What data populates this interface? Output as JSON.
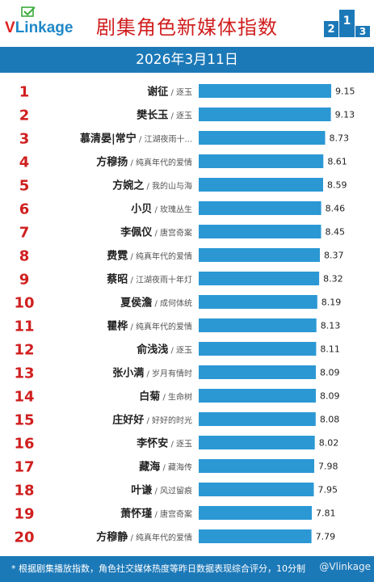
{
  "header": {
    "logo_text_accent": "V",
    "logo_text_rest": "Linkage",
    "title": "剧集角色新媒体指数",
    "podium_digits": [
      "2",
      "1",
      "3"
    ]
  },
  "date": "2026年3月11日",
  "footer": {
    "note": "* 根据剧集播放指数，角色社交媒体热度等昨日数据表现综合评分，10分制",
    "watermark": "@Vlinkage"
  },
  "colors": {
    "bar": "#2b98d4",
    "rank": "#d01f1f",
    "header_bg": "#1c79b8",
    "title": "#d01f1f"
  },
  "chart_data": {
    "type": "bar",
    "orientation": "horizontal",
    "xlim": [
      0,
      9.15
    ],
    "categories": [
      {
        "rank": "1",
        "name": "谢征",
        "drama": "逐玉"
      },
      {
        "rank": "2",
        "name": "樊长玉",
        "drama": "逐玉"
      },
      {
        "rank": "3",
        "name": "慕清晏|常宁",
        "drama": "江湖夜雨十..."
      },
      {
        "rank": "4",
        "name": "方穆扬",
        "drama": "纯真年代的爱情"
      },
      {
        "rank": "5",
        "name": "方婉之",
        "drama": "我的山与海"
      },
      {
        "rank": "6",
        "name": "小贝",
        "drama": "玫瑰丛生"
      },
      {
        "rank": "7",
        "name": "李佩仪",
        "drama": "唐宫奇案"
      },
      {
        "rank": "8",
        "name": "费霓",
        "drama": "纯真年代的爱情"
      },
      {
        "rank": "9",
        "name": "蔡昭",
        "drama": "江湖夜雨十年灯"
      },
      {
        "rank": "10",
        "name": "夏侯澹",
        "drama": "成何体统"
      },
      {
        "rank": "11",
        "name": "瞿桦",
        "drama": "纯真年代的爱情"
      },
      {
        "rank": "12",
        "name": "俞浅浅",
        "drama": "逐玉"
      },
      {
        "rank": "13",
        "name": "张小满",
        "drama": "岁月有情时"
      },
      {
        "rank": "14",
        "name": "白菊",
        "drama": "生命树"
      },
      {
        "rank": "15",
        "name": "庄好好",
        "drama": "好好的时光"
      },
      {
        "rank": "16",
        "name": "李怀安",
        "drama": "逐玉"
      },
      {
        "rank": "17",
        "name": "藏海",
        "drama": "藏海传"
      },
      {
        "rank": "18",
        "name": "叶谦",
        "drama": "风过留痕"
      },
      {
        "rank": "19",
        "name": "萧怀瑾",
        "drama": "唐宫奇案"
      },
      {
        "rank": "20",
        "name": "方穆静",
        "drama": "纯真年代的爱情"
      }
    ],
    "values": [
      9.15,
      9.13,
      8.73,
      8.61,
      8.59,
      8.46,
      8.45,
      8.37,
      8.32,
      8.19,
      8.13,
      8.11,
      8.09,
      8.09,
      8.08,
      8.02,
      7.98,
      7.95,
      7.81,
      7.79
    ],
    "value_labels": [
      "9.15",
      "9.13",
      "8.73",
      "8.61",
      "8.59",
      "8.46",
      "8.45",
      "8.37",
      "8.32",
      "8.19",
      "8.13",
      "8.11",
      "8.09",
      "8.09",
      "8.08",
      "8.02",
      "7.98",
      "7.95",
      "7.81",
      "7.79"
    ]
  }
}
